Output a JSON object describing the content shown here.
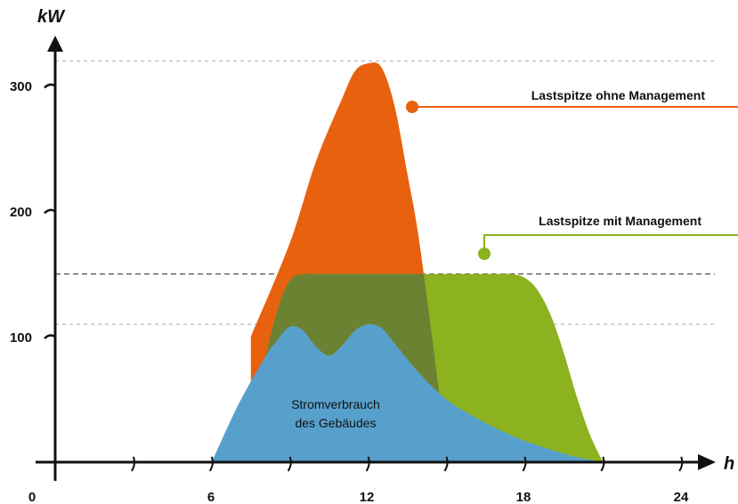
{
  "chart_data": {
    "type": "area",
    "ylabel": "kW",
    "xlabel": "h",
    "xlim": [
      0,
      24
    ],
    "ylim": [
      0,
      320
    ],
    "x_ticks": [
      "0",
      "6",
      "12",
      "18",
      "24"
    ],
    "y_ticks": [
      "100",
      "200",
      "300"
    ],
    "x_tick_values": [
      0,
      6,
      12,
      18,
      24
    ],
    "y_tick_values": [
      100,
      200,
      300
    ],
    "reference_lines": [
      {
        "value": 320,
        "style": "dashed-light"
      },
      {
        "value": 150,
        "style": "dashed-dark"
      },
      {
        "value": 110,
        "style": "dashed-light"
      }
    ],
    "series": [
      {
        "name": "Lastspitze ohne Management",
        "color": "#e8610e",
        "x": [
          7.5,
          9,
          10,
          11,
          11.5,
          12,
          12.5,
          13,
          13.5,
          14,
          15
        ],
        "y": [
          100,
          175,
          240,
          290,
          312,
          318,
          315,
          285,
          230,
          170,
          10
        ]
      },
      {
        "name": "Lastspitze mit Management",
        "color": "#8cb21f",
        "x": [
          7.5,
          8,
          8.5,
          9,
          9.5,
          10,
          12,
          14,
          15,
          16,
          17,
          17.5,
          18,
          18.5,
          19,
          19.5,
          20,
          20.5,
          21
        ],
        "y": [
          50,
          80,
          120,
          145,
          150,
          150,
          150,
          150,
          150,
          150,
          150,
          150,
          147,
          137,
          117,
          87,
          52,
          22,
          0
        ]
      },
      {
        "name": "Stromverbrauch des Gebäudes",
        "color": "#58a0cc",
        "x": [
          6,
          7,
          8,
          8.5,
          9,
          9.5,
          10,
          10.5,
          11,
          11.5,
          12,
          12.5,
          13,
          14,
          15,
          16,
          17,
          18,
          19,
          20,
          21
        ],
        "y": [
          0,
          45,
          82,
          97,
          108,
          105,
          92,
          85,
          93,
          105,
          110,
          107,
          95,
          70,
          50,
          37,
          26,
          17,
          10,
          4,
          0
        ]
      }
    ],
    "labels": {
      "peak_without": "Lastspitze ohne Management",
      "peak_with": "Lastspitze mit Management",
      "consumption_line1": "Stromverbrauch",
      "consumption_line2": "des Gebäudes"
    },
    "colors": {
      "orange": "#e8610e",
      "green": "#8cb21f",
      "overlap": "#6c8233",
      "blue": "#58a0cc",
      "axis": "#111111"
    },
    "grid": false,
    "legend": "none"
  }
}
